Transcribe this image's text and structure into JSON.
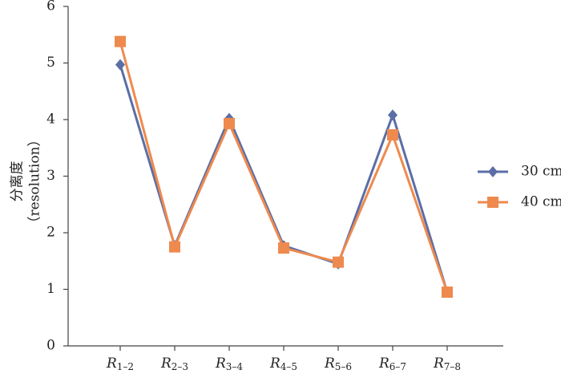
{
  "chart_data": {
    "type": "line",
    "ylabel": [
      "分离度",
      "（resolution）"
    ],
    "categories": [
      "R1–2",
      "R2–3",
      "R3–4",
      "R4–5",
      "R5–6",
      "R6–7",
      "R7–8"
    ],
    "series": [
      {
        "name": "30 cm",
        "color": "#5b6ea6",
        "marker": "diamond",
        "values": [
          4.97,
          1.77,
          4.02,
          1.77,
          1.45,
          4.08,
          0.95
        ]
      },
      {
        "name": "40 cm",
        "color": "#ee8a4e",
        "marker": "square",
        "values": [
          5.38,
          1.75,
          3.93,
          1.73,
          1.48,
          3.73,
          0.95
        ]
      }
    ],
    "ylim": [
      0,
      6
    ],
    "yticks": [
      0,
      1,
      2,
      3,
      4,
      5,
      6
    ],
    "grid": false,
    "legend": "right"
  }
}
